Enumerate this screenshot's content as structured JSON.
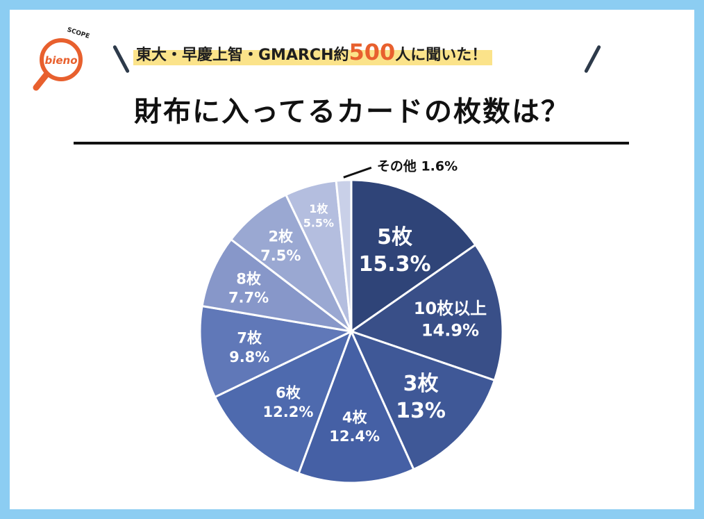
{
  "brand": {
    "logo_text": "bieno",
    "logo_sub": "SCOPE"
  },
  "header": {
    "subtitle_prefix": "東大・早慶上智・GMARCH約",
    "subtitle_number": "500",
    "subtitle_suffix": "人に聞いた！",
    "title": "財布に入ってるカードの枚数は？"
  },
  "colors": {
    "background": "#8ccdf2",
    "highlight": "#fbe38a",
    "accent": "#e8602e"
  },
  "chart_data": {
    "type": "pie",
    "start": "12 o'clock, clockwise",
    "slices": [
      {
        "label": "5枚",
        "value": 15.3,
        "display": "15.3%",
        "color": "#2f4478"
      },
      {
        "label": "10枚以上",
        "value": 14.9,
        "display": "14.9%",
        "color": "#394f88"
      },
      {
        "label": "3枚",
        "value": 13,
        "display": "13%",
        "color": "#3f5897"
      },
      {
        "label": "4枚",
        "value": 12.4,
        "display": "12.4%",
        "color": "#4560a5"
      },
      {
        "label": "6枚",
        "value": 12.2,
        "display": "12.2%",
        "color": "#4e6aae"
      },
      {
        "label": "7枚",
        "value": 9.8,
        "display": "9.8%",
        "color": "#6078b8"
      },
      {
        "label": "8枚",
        "value": 7.7,
        "display": "7.7%",
        "color": "#8797c9"
      },
      {
        "label": "2枚",
        "value": 7.5,
        "display": "7.5%",
        "color": "#9aa8d2"
      },
      {
        "label": "1枚",
        "value": 5.5,
        "display": "5.5%",
        "color": "#b4bedf"
      },
      {
        "label": "その他",
        "value": 1.6,
        "display": "1.6%",
        "color": "#c9d0e8"
      }
    ]
  }
}
